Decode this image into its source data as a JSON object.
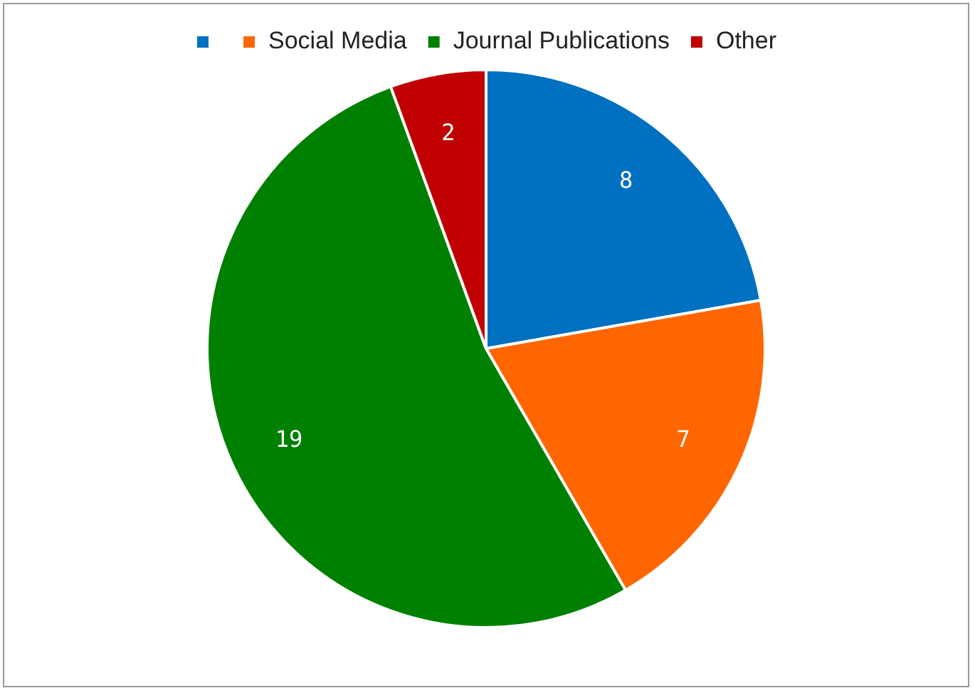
{
  "chart_data": {
    "type": "pie",
    "categories": [
      null,
      "Social Media",
      "Journal Publications",
      "Other"
    ],
    "values": [
      8,
      7,
      19,
      2
    ],
    "colors": [
      "#0070c0",
      "#ff6600",
      "#008000",
      "#c00000"
    ],
    "data_labels": true,
    "legend": "top"
  }
}
